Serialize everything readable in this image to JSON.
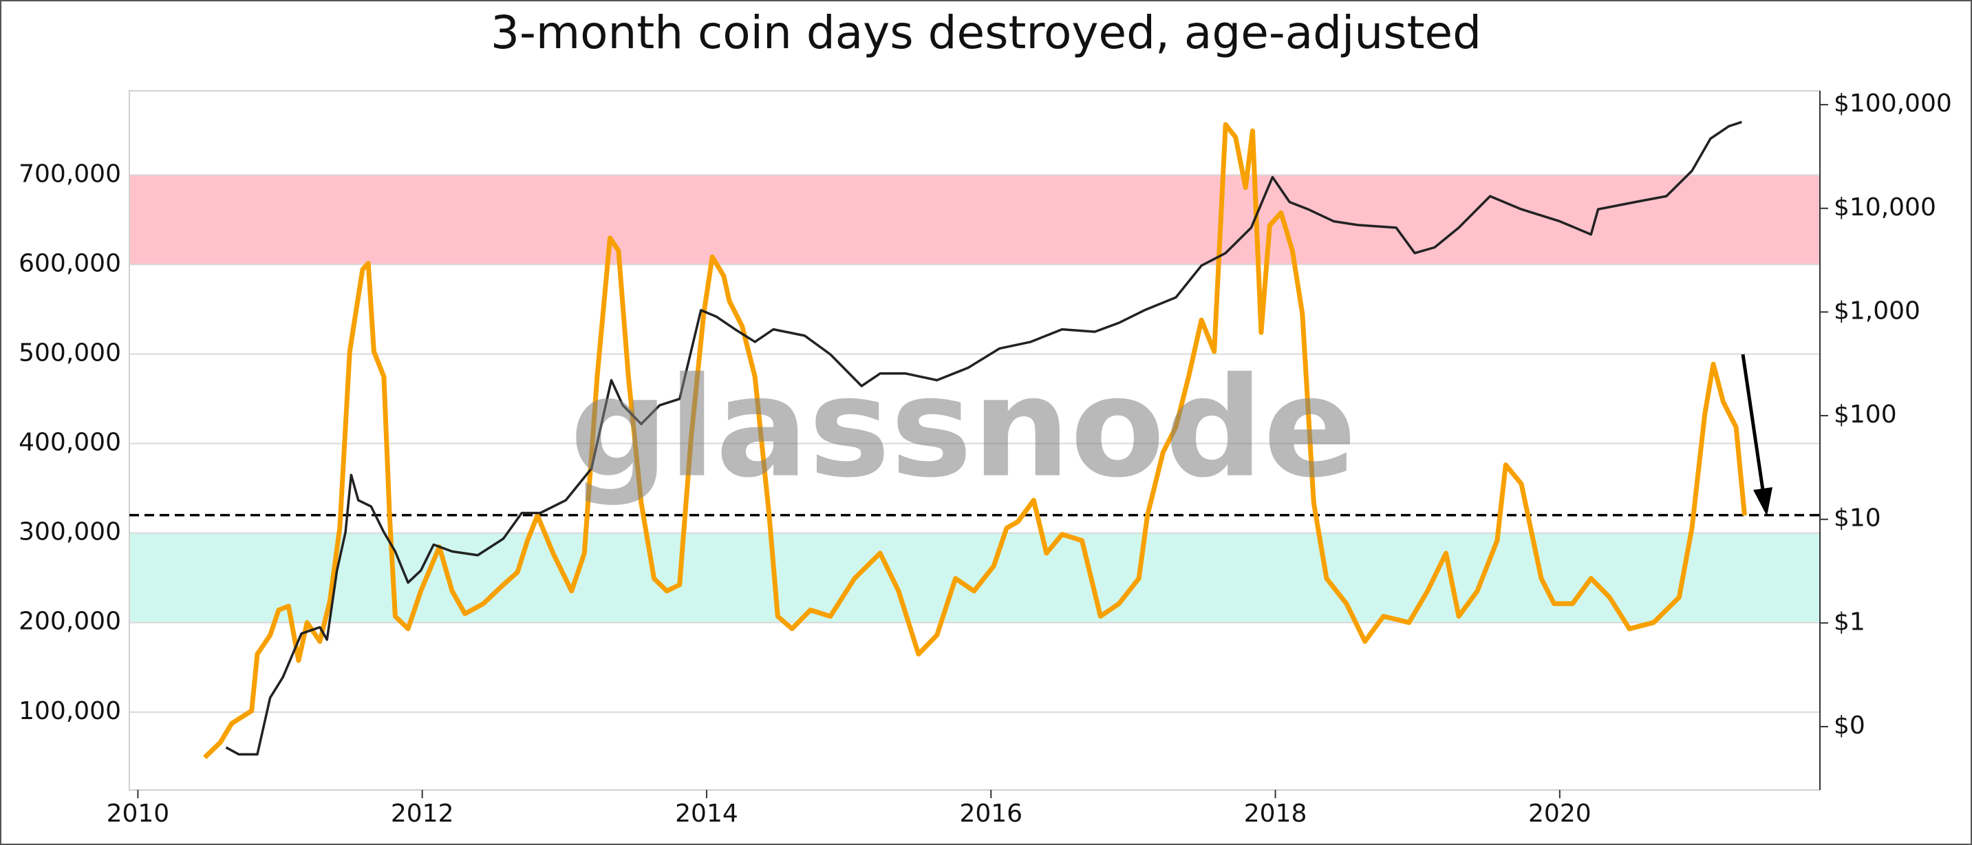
{
  "chart_data": {
    "type": "line",
    "title": "3-month coin days destroyed, age-adjusted",
    "watermark": "glassnode",
    "xlim": [
      2009.94,
      2021.83
    ],
    "xticks": [
      2010,
      2012,
      2014,
      2016,
      2018,
      2020
    ],
    "ylim": [
      13000,
      794000
    ],
    "yticks": [
      {
        "value": 100000,
        "label": "100,000"
      },
      {
        "value": 200000,
        "label": "200,000"
      },
      {
        "value": 300000,
        "label": "300,000"
      },
      {
        "value": 400000,
        "label": "400,000"
      },
      {
        "value": 500000,
        "label": "500,000"
      },
      {
        "value": 600000,
        "label": "600,000"
      },
      {
        "value": 700000,
        "label": "700,000"
      }
    ],
    "y2lim": [
      0.0245,
      136000
    ],
    "y2scale": "log",
    "y2ticks": [
      {
        "value": 0.1,
        "label": "$0"
      },
      {
        "value": 1,
        "label": "$1"
      },
      {
        "value": 10,
        "label": "$10"
      },
      {
        "value": 100,
        "label": "$100"
      },
      {
        "value": 1000,
        "label": "$1,000"
      },
      {
        "value": 10000,
        "label": "$10,000"
      },
      {
        "value": 100000,
        "label": "$100,000"
      }
    ],
    "grid": true,
    "bands": [
      {
        "from": 600000,
        "to": 700000,
        "color": "#ffc2cb"
      },
      {
        "from": 200000,
        "to": 300000,
        "color": "#cff7ef"
      }
    ],
    "hline": {
      "value": 320000,
      "style": "dashed",
      "color": "#000000"
    },
    "series": [
      {
        "color": "#f7a000",
        "x": [
          2010.47,
          2010.58,
          2010.66,
          2010.8,
          2010.84,
          2010.93,
          2010.99,
          2011.06,
          2011.13,
          2011.19,
          2011.28,
          2011.35,
          2011.42,
          2011.49,
          2011.58,
          2011.62,
          2011.66,
          2011.73,
          2011.77,
          2011.81,
          2011.9,
          2011.99,
          2012.12,
          2012.21,
          2012.3,
          2012.43,
          2012.57,
          2012.67,
          2012.74,
          2012.81,
          2012.92,
          2013.05,
          2013.14,
          2013.23,
          2013.32,
          2013.38,
          2013.45,
          2013.54,
          2013.63,
          2013.72,
          2013.81,
          2013.89,
          2013.98,
          2014.04,
          2014.12,
          2014.16,
          2014.25,
          2014.34,
          2014.44,
          2014.5,
          2014.6,
          2014.73,
          2014.87,
          2015.04,
          2015.22,
          2015.35,
          2015.49,
          2015.62,
          2015.75,
          2015.88,
          2016.02,
          2016.11,
          2016.19,
          2016.3,
          2016.39,
          2016.5,
          2016.64,
          2016.77,
          2016.9,
          2017.04,
          2017.1,
          2017.21,
          2017.3,
          2017.39,
          2017.48,
          2017.57,
          2017.65,
          2017.72,
          2017.79,
          2017.84,
          2017.9,
          2017.96,
          2018.04,
          2018.12,
          2018.19,
          2018.27,
          2018.36,
          2018.5,
          2018.63,
          2018.76,
          2018.94,
          2019.07,
          2019.2,
          2019.29,
          2019.42,
          2019.56,
          2019.62,
          2019.73,
          2019.87,
          2019.96,
          2020.09,
          2020.22,
          2020.35,
          2020.49,
          2020.66,
          2020.84,
          2020.93,
          2021.02,
          2021.08,
          2021.15,
          2021.24,
          2021.3
        ],
        "values": [
          49300,
          66200,
          87300,
          101400,
          164800,
          185900,
          214000,
          218300,
          157700,
          200000,
          178900,
          224000,
          305600,
          502800,
          594400,
          601400,
          502800,
          474700,
          319700,
          207000,
          193000,
          235200,
          284500,
          235200,
          209900,
          221100,
          242300,
          256300,
          291600,
          319700,
          277500,
          235200,
          277500,
          474700,
          629600,
          615500,
          474700,
          333800,
          249300,
          235200,
          242300,
          404200,
          545100,
          608500,
          587300,
          559200,
          531000,
          474700,
          319700,
          207000,
          193000,
          214000,
          207000,
          249300,
          277500,
          235200,
          164800,
          185900,
          249300,
          235200,
          263400,
          305600,
          312700,
          336600,
          277500,
          298600,
          291600,
          207000,
          221100,
          249300,
          319700,
          390200,
          418300,
          474700,
          538000,
          502800,
          756300,
          742200,
          685900,
          749300,
          524000,
          643700,
          657800,
          615500,
          545100,
          333800,
          249300,
          221100,
          178900,
          207000,
          200000,
          235200,
          277500,
          207000,
          235200,
          291600,
          376100,
          355000,
          249300,
          221100,
          221100,
          249300,
          228200,
          193000,
          200000,
          228200,
          305600,
          432400,
          488700,
          446500,
          418300,
          319700
        ]
      },
      {
        "color": "#222222",
        "axis": "y2",
        "x": [
          2010.62,
          2010.71,
          2010.84,
          2010.93,
          2011.02,
          2011.15,
          2011.28,
          2011.33,
          2011.4,
          2011.46,
          2011.5,
          2011.55,
          2011.64,
          2011.73,
          2011.81,
          2011.9,
          2011.99,
          2012.08,
          2012.21,
          2012.39,
          2012.57,
          2012.7,
          2012.83,
          2013.01,
          2013.19,
          2013.27,
          2013.33,
          2013.41,
          2013.54,
          2013.67,
          2013.81,
          2013.96,
          2014.07,
          2014.2,
          2014.34,
          2014.47,
          2014.69,
          2014.87,
          2015.09,
          2015.22,
          2015.4,
          2015.62,
          2015.84,
          2016.06,
          2016.28,
          2016.5,
          2016.73,
          2016.9,
          2017.08,
          2017.3,
          2017.48,
          2017.65,
          2017.83,
          2017.98,
          2018.1,
          2018.23,
          2018.41,
          2018.58,
          2018.85,
          2018.98,
          2019.12,
          2019.29,
          2019.51,
          2019.73,
          2020.0,
          2020.22,
          2020.27,
          2020.53,
          2020.75,
          2020.93,
          2021.06,
          2021.19,
          2021.28
        ],
        "values": [
          0.063,
          0.054,
          0.054,
          0.19,
          0.3,
          0.79,
          0.91,
          0.69,
          3.2,
          7.5,
          26.8,
          15.3,
          13.3,
          7.5,
          4.9,
          2.45,
          3.2,
          5.7,
          4.9,
          4.5,
          6.5,
          11.5,
          11.5,
          15.3,
          30.9,
          95,
          220,
          126,
          83,
          126,
          145,
          1040,
          900,
          680,
          515,
          680,
          590,
          390,
          193,
          255,
          255,
          220,
          290,
          445,
          515,
          680,
          645,
          785,
          1040,
          1380,
          2800,
          3700,
          6500,
          20000,
          11500,
          9800,
          7500,
          6900,
          6500,
          3700,
          4200,
          6500,
          13100,
          9800,
          7500,
          5600,
          9800,
          11500,
          13100,
          23000,
          47000,
          62000,
          68000
        ]
      }
    ]
  }
}
